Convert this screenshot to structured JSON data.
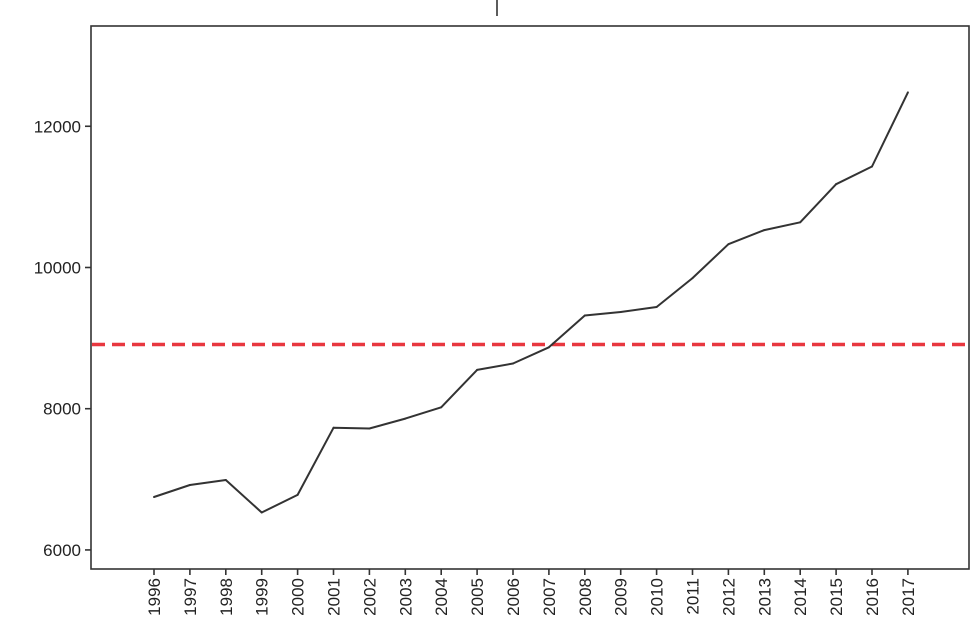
{
  "chart_data": {
    "type": "line",
    "title": "",
    "xlabel": "",
    "ylabel": "",
    "categories": [
      "1996",
      "1997",
      "1998",
      "1999",
      "2000",
      "2001",
      "2002",
      "2003",
      "2004",
      "2005",
      "2006",
      "2007",
      "2008",
      "2009",
      "2010",
      "2011",
      "2012",
      "2013",
      "2014",
      "2015",
      "2016",
      "2017"
    ],
    "series": [
      {
        "values": [
          6750,
          6920,
          6990,
          6530,
          6780,
          7730,
          7720,
          7860,
          8020,
          8550,
          8640,
          8870,
          9320,
          9370,
          9440,
          9850,
          10330,
          10530,
          10640,
          11180,
          11430,
          12480
        ]
      }
    ],
    "reference_line": {
      "y": 8910,
      "color": "#e8373f",
      "style": "dashed"
    },
    "ylim": [
      5730,
      13420
    ],
    "yticks": [
      6000,
      8000,
      10000,
      12000
    ],
    "ytick_labels": [
      "6000",
      "8000",
      "10000",
      "12000"
    ],
    "grid": false,
    "legend": "none",
    "line_color": "#333333"
  }
}
